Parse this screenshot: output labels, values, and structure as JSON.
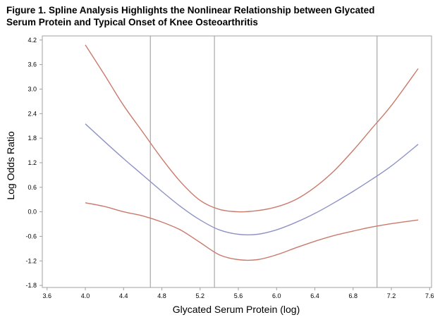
{
  "chart_data": {
    "type": "line",
    "title_lines": [
      "Figure 1. Spline Analysis Highlights the Nonlinear Relationship between Glycated",
      "Serum Protein and Typical Onset of Knee Osteoarthritis"
    ],
    "xlabel": "Glycated Serum Protein (log)",
    "ylabel": "Log Odds Ratio",
    "xlim": [
      3.55,
      7.62
    ],
    "ylim": [
      -1.85,
      4.3
    ],
    "xticks": [
      3.6,
      4.0,
      4.4,
      4.8,
      5.2,
      5.6,
      6.0,
      6.4,
      6.8,
      7.2,
      7.6
    ],
    "yticks": [
      4.2,
      3.6,
      3.0,
      2.4,
      1.8,
      1.2,
      0.6,
      0.0,
      -0.6,
      -1.2,
      -1.8
    ],
    "tick_decimals": 1,
    "reference_lines_x": [
      4.68,
      5.35,
      7.05
    ],
    "grid": false,
    "colors": {
      "estimate": "#8e93c4",
      "ci": "#c97a6c",
      "reference": "#a8a8a8",
      "frame": "#a0a0a0"
    },
    "series": [
      {
        "role": "upper",
        "x": [
          4.0,
          4.2,
          4.4,
          4.6,
          4.8,
          5.0,
          5.2,
          5.4,
          5.6,
          5.8,
          6.0,
          6.2,
          6.4,
          6.6,
          6.8,
          7.0,
          7.2,
          7.48
        ],
        "y": [
          4.08,
          3.35,
          2.6,
          1.95,
          1.3,
          0.72,
          0.28,
          0.06,
          0.0,
          0.03,
          0.12,
          0.3,
          0.6,
          1.0,
          1.5,
          2.05,
          2.6,
          3.5
        ]
      },
      {
        "role": "estimate",
        "x": [
          4.0,
          4.2,
          4.4,
          4.6,
          4.8,
          5.0,
          5.2,
          5.4,
          5.6,
          5.8,
          6.0,
          6.2,
          6.4,
          6.6,
          6.8,
          7.0,
          7.2,
          7.48
        ],
        "y": [
          2.15,
          1.72,
          1.3,
          0.9,
          0.5,
          0.12,
          -0.2,
          -0.44,
          -0.55,
          -0.55,
          -0.44,
          -0.26,
          -0.04,
          0.22,
          0.5,
          0.8,
          1.12,
          1.65
        ]
      },
      {
        "role": "lower",
        "x": [
          4.0,
          4.2,
          4.4,
          4.6,
          4.8,
          5.0,
          5.2,
          5.4,
          5.6,
          5.8,
          6.0,
          6.2,
          6.4,
          6.6,
          6.8,
          7.0,
          7.2,
          7.48
        ],
        "y": [
          0.22,
          0.13,
          0.0,
          -0.1,
          -0.25,
          -0.45,
          -0.75,
          -1.05,
          -1.17,
          -1.17,
          -1.05,
          -0.88,
          -0.72,
          -0.58,
          -0.47,
          -0.37,
          -0.29,
          -0.2
        ]
      }
    ]
  }
}
